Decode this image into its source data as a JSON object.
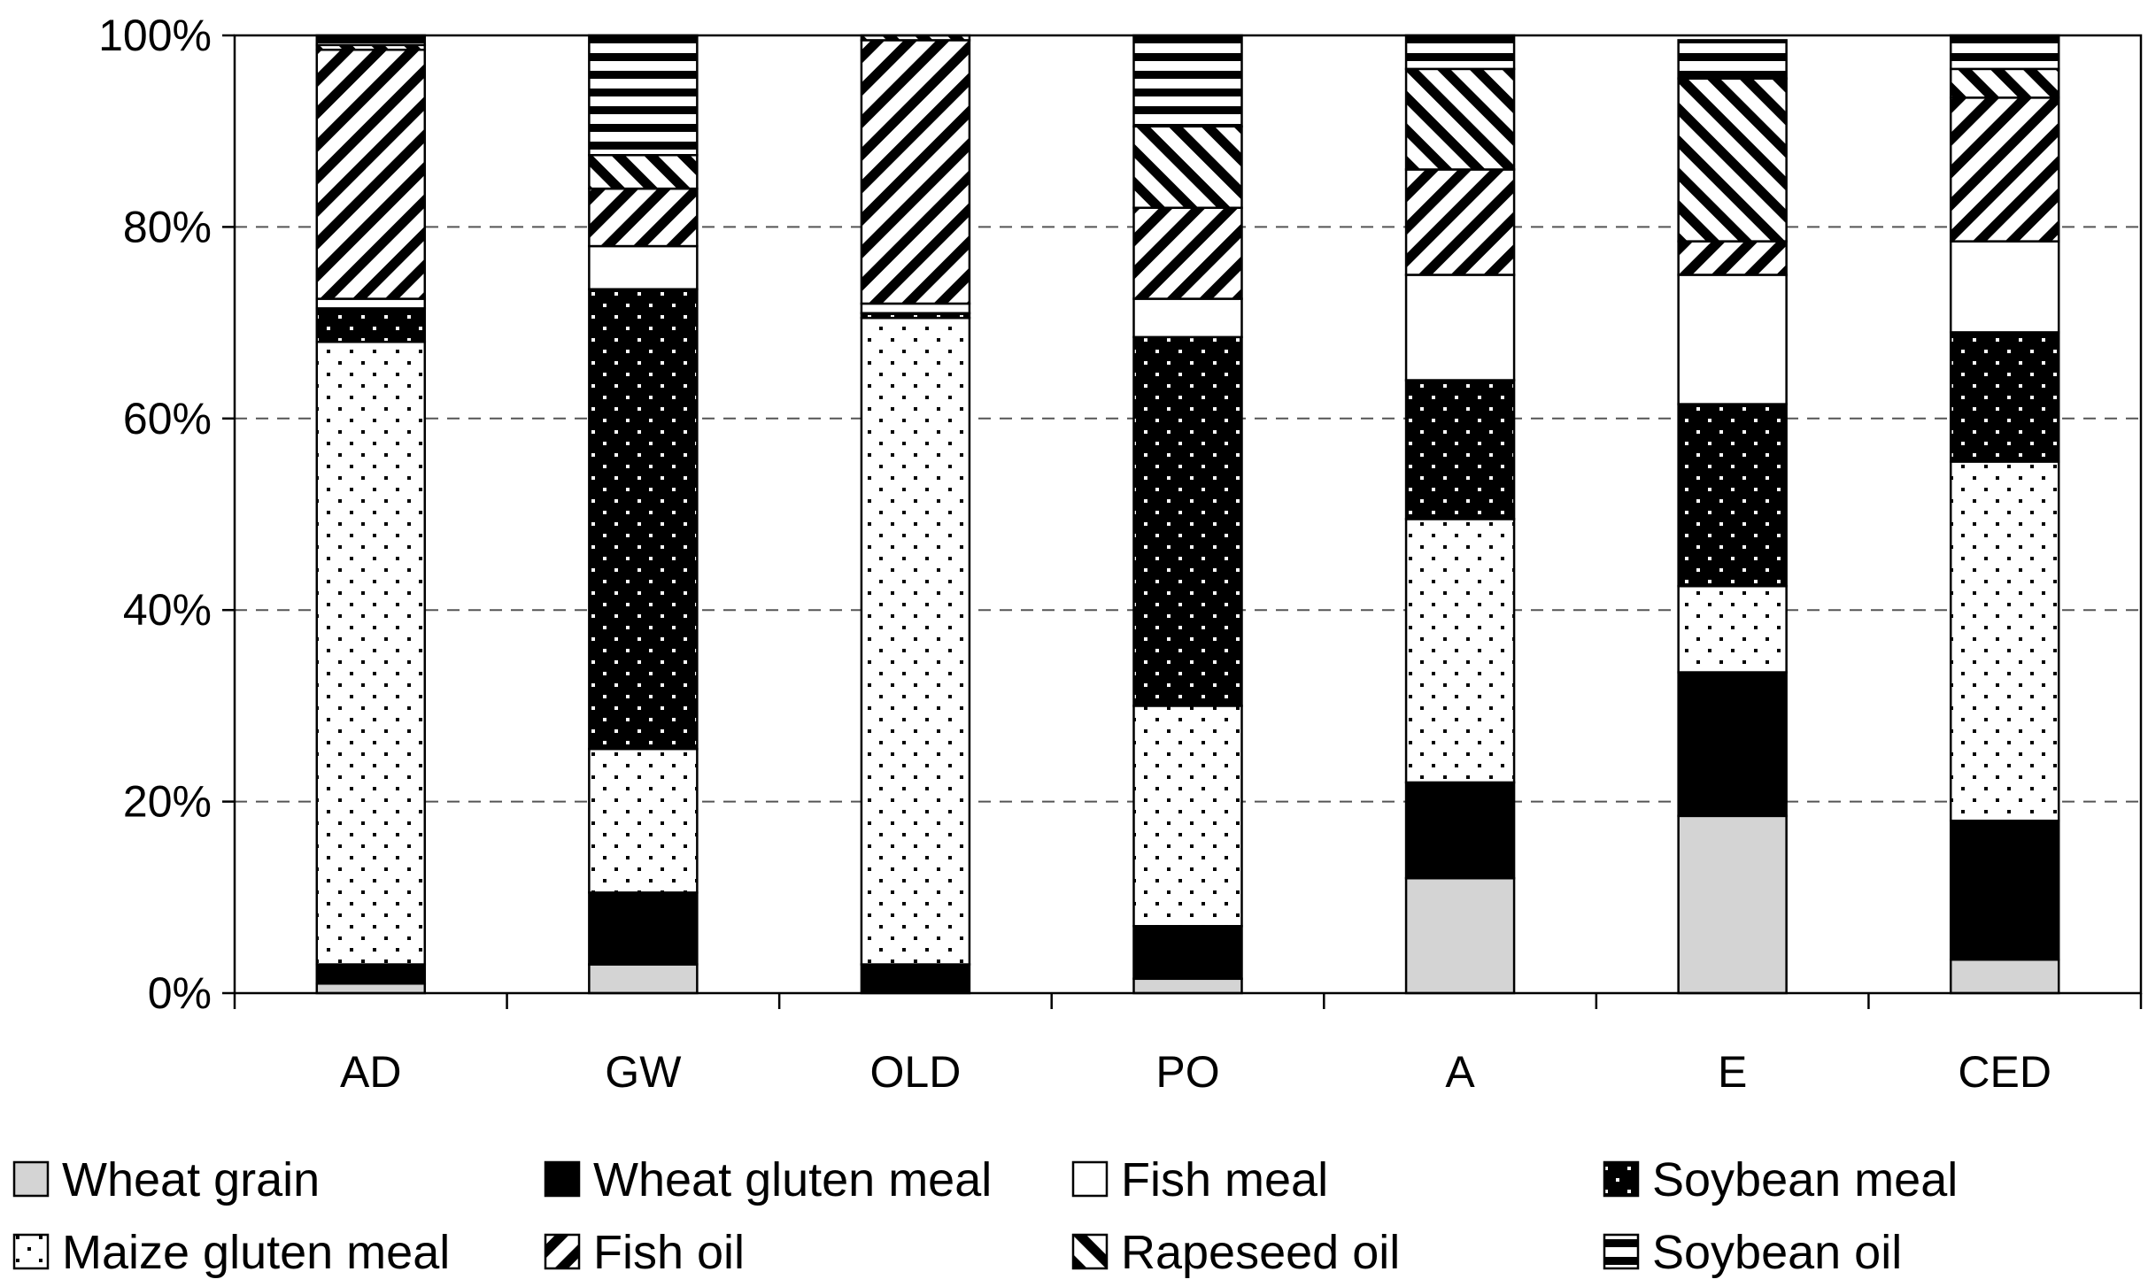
{
  "chart_data": {
    "type": "bar",
    "stacked": true,
    "normalized": true,
    "title": "",
    "xlabel": "",
    "ylabel": "",
    "ylim": [
      0,
      100
    ],
    "yticks": [
      "0%",
      "20%",
      "40%",
      "60%",
      "80%",
      "100%"
    ],
    "ytick_values": [
      0,
      20,
      40,
      60,
      80,
      100
    ],
    "grid": "horizontal dashed",
    "categories": [
      "AD",
      "GW",
      "OLD",
      "PO",
      "A",
      "E",
      "CED"
    ],
    "series": [
      {
        "name": "Wheat grain",
        "pattern": "light-gray",
        "values": [
          1,
          3,
          0,
          1.5,
          12,
          18.5,
          3.5
        ]
      },
      {
        "name": "Wheat gluten meal",
        "pattern": "solid-black",
        "values": [
          2,
          7.5,
          3,
          5.5,
          10,
          15,
          14.5
        ]
      },
      {
        "name": "Maize gluten meal",
        "pattern": "dotted",
        "values": [
          65,
          15,
          67.5,
          23,
          27.5,
          9,
          37.5
        ]
      },
      {
        "name": "Soybean meal",
        "pattern": "black-dotted",
        "values": [
          3.5,
          48,
          0.5,
          38.5,
          14.5,
          19,
          13.5
        ]
      },
      {
        "name": "Fish meal",
        "pattern": "white",
        "values": [
          1,
          4.5,
          1,
          4,
          11,
          13.5,
          9.5
        ]
      },
      {
        "name": "Fish oil",
        "pattern": "diagonal-up",
        "values": [
          26,
          6,
          27.5,
          9.5,
          11,
          3.5,
          15
        ]
      },
      {
        "name": "Rapeseed oil",
        "pattern": "diagonal-down",
        "values": [
          0.5,
          3.5,
          0.5,
          8.5,
          10.5,
          17,
          3
        ]
      },
      {
        "name": "Soybean oil",
        "pattern": "horizontal-lines",
        "values": [
          1,
          12.5,
          0,
          9.5,
          3.5,
          4,
          3.5
        ]
      }
    ],
    "legend": {
      "placement": "bottom",
      "items": [
        [
          "Wheat grain",
          "Wheat gluten meal",
          "Fish meal",
          "Soybean meal"
        ],
        [
          "Maize gluten meal",
          "Fish oil",
          "Rapeseed oil",
          "Soybean oil"
        ]
      ]
    }
  }
}
